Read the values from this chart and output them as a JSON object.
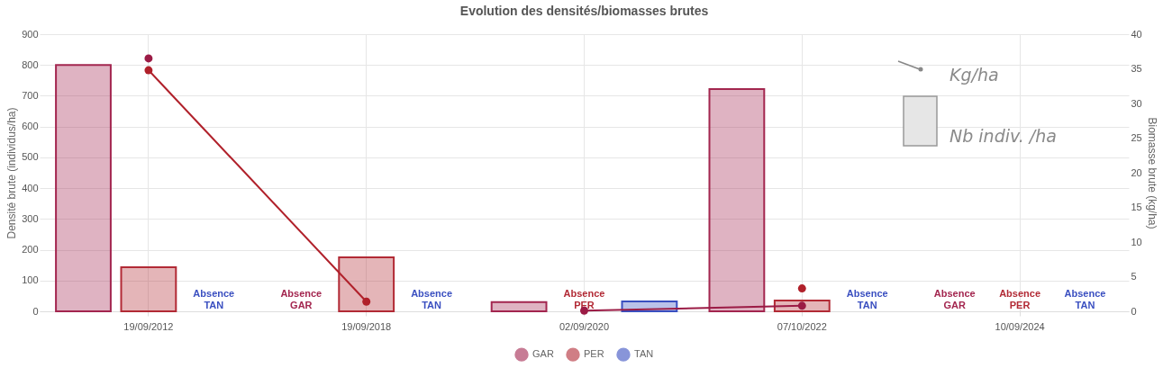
{
  "chart_data": {
    "type": "bar",
    "title": "Evolution des densités/biomasses brutes",
    "categories": [
      "19/09/2012",
      "19/09/2018",
      "02/09/2020",
      "07/10/2022",
      "10/09/2024"
    ],
    "series": [
      {
        "name": "GAR",
        "color": "#a3264f",
        "values": [
          800,
          null,
          30,
          722,
          null
        ]
      },
      {
        "name": "PER",
        "color": "#b22a35",
        "values": [
          143,
          175,
          null,
          35,
          null
        ]
      },
      {
        "name": "TAN",
        "color": "#3a4fc0",
        "values": [
          null,
          null,
          32,
          null,
          null
        ]
      },
      {
        "type": "line",
        "axis": "y2",
        "color": "#9b1b45",
        "values": [
          36.5,
          null,
          0.1,
          0.8,
          null
        ]
      },
      {
        "type": "line",
        "axis": "y2",
        "color": "#b0202a",
        "values": [
          34.8,
          1.4,
          null,
          3.3,
          null
        ]
      }
    ],
    "ylabel": "Densité brute (individus/ha)",
    "y2label": "Biomasse brute (kg/ha)",
    "ylim": [
      0,
      900
    ],
    "yticks": [
      0,
      100,
      200,
      300,
      400,
      500,
      600,
      700,
      800,
      900
    ],
    "y2lim": [
      0,
      40
    ],
    "y2ticks": [
      0,
      5,
      10,
      15,
      20,
      25,
      30,
      35,
      40
    ],
    "grid": true,
    "legend": "bottom",
    "marker": "circle",
    "annotations": [
      "Absence\nTAN",
      "Absence\nGAR",
      "Absence\nTAN",
      "Absence\nPER",
      "Absence\nTAN",
      "Absence\nGAR",
      "Absence\nPER",
      "Absence\nTAN",
      "Kg/ha",
      "Nb indiv. /ha"
    ]
  }
}
